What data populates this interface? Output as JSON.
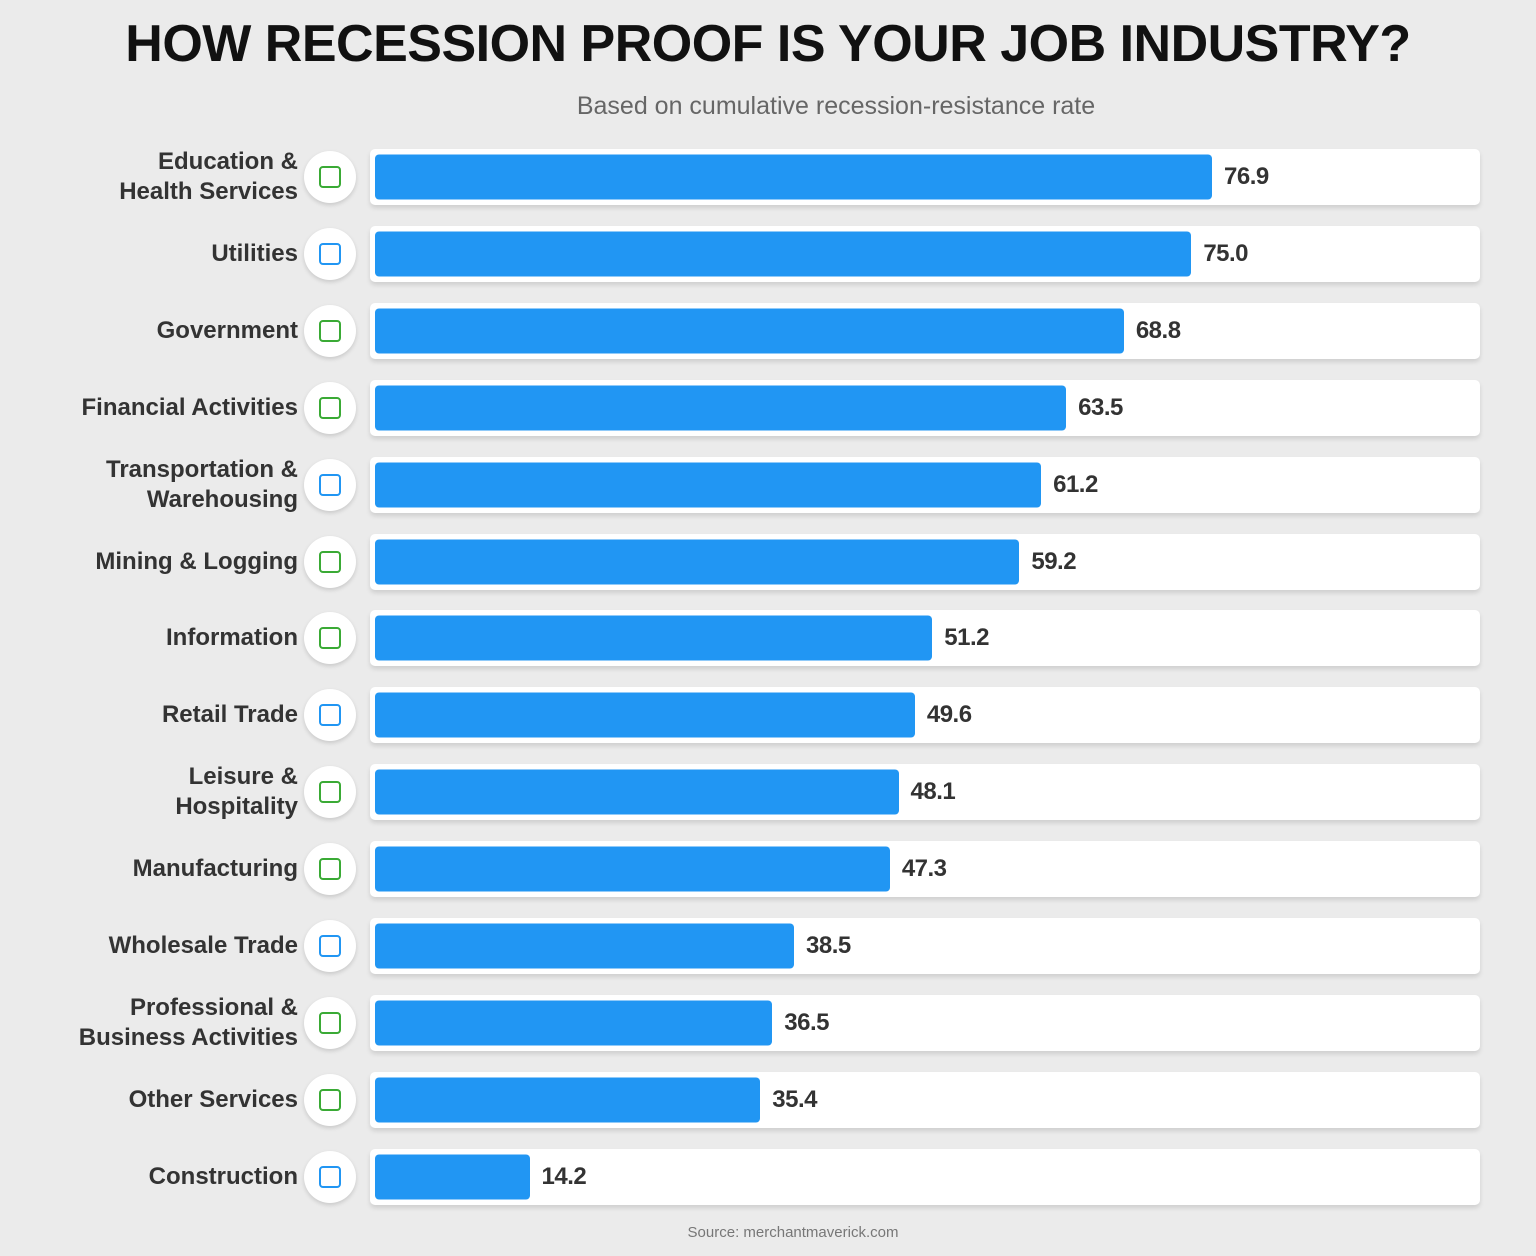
{
  "chart_data": {
    "type": "bar",
    "orientation": "horizontal",
    "title": "HOW RECESSION PROOF IS YOUR JOB INDUSTRY?",
    "subtitle": "Based on cumulative recession-resistance rate",
    "source": "Source: merchantmaverick.com",
    "categories": [
      "Education &\nHealth Services",
      "Utilities",
      "Government",
      "Financial Activities",
      "Transportation &\nWarehousing",
      "Mining & Logging",
      "Information",
      "Retail Trade",
      "Leisure &\nHospitality",
      "Manufacturing",
      "Wholesale Trade",
      "Professional &\nBusiness Activities",
      "Other Services",
      "Construction"
    ],
    "values": [
      76.9,
      75.0,
      68.8,
      63.5,
      61.2,
      59.2,
      51.2,
      49.6,
      48.1,
      47.3,
      38.5,
      36.5,
      35.4,
      14.2
    ],
    "value_labels": [
      "76.9",
      "75.0",
      "68.8",
      "63.5",
      "61.2",
      "59.2",
      "51.2",
      "49.6",
      "48.1",
      "47.3",
      "38.5",
      "36.5",
      "35.4",
      "14.2"
    ],
    "color": "#2196f3"
  }
}
